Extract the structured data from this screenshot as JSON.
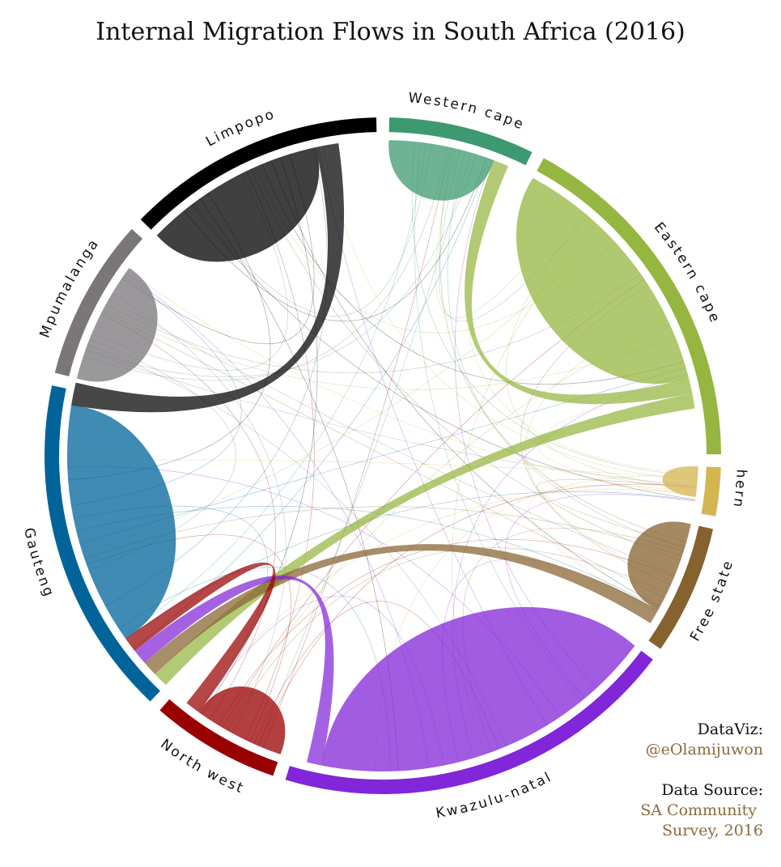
{
  "title": "Internal Migration Flows in South Africa (2016)",
  "credits": {
    "dataviz_label": "DataViz:",
    "dataviz_handle": "@eOlamijuwon",
    "source_label": "Data Source:",
    "source_line1": "SA Community",
    "source_line2": "Survey, 2016"
  },
  "chart_data": {
    "type": "chord",
    "title": "Internal Migration Flows in South Africa (2016)",
    "sectors": [
      {
        "name": "Western cape",
        "color": "#3d9970",
        "total": 9
      },
      {
        "name": "Eastern cape",
        "color": "#95b640",
        "total": 22
      },
      {
        "name": "Northern cape",
        "color": "#d4b651",
        "total": 3
      },
      {
        "name": "Free state",
        "color": "#86622e",
        "total": 8
      },
      {
        "name": "Kwazulu-natal",
        "color": "#8126d8",
        "total": 25
      },
      {
        "name": "North west",
        "color": "#990000",
        "total": 8
      },
      {
        "name": "Gauteng",
        "color": "#00649a",
        "total": 21
      },
      {
        "name": "Mpumalanga",
        "color": "#7a7679",
        "total": 10
      },
      {
        "name": "Limpopo",
        "color": "#000000",
        "total": 16
      }
    ],
    "flows": [
      {
        "from": "Western cape",
        "to": "Western cape",
        "value": 7
      },
      {
        "from": "Eastern cape",
        "to": "Eastern cape",
        "value": 17
      },
      {
        "from": "Eastern cape",
        "to": "Western cape",
        "value": 1
      },
      {
        "from": "Eastern cape",
        "to": "Gauteng",
        "value": 1
      },
      {
        "from": "Northern cape",
        "to": "Northern cape",
        "value": 2
      },
      {
        "from": "Free state",
        "to": "Free state",
        "value": 6
      },
      {
        "from": "Free state",
        "to": "Gauteng",
        "value": 1
      },
      {
        "from": "Kwazulu-natal",
        "to": "Kwazulu-natal",
        "value": 23
      },
      {
        "from": "Kwazulu-natal",
        "to": "Gauteng",
        "value": 1
      },
      {
        "from": "North west",
        "to": "North west",
        "value": 6
      },
      {
        "from": "North west",
        "to": "Gauteng",
        "value": 1
      },
      {
        "from": "Gauteng",
        "to": "Gauteng",
        "value": 16
      },
      {
        "from": "Mpumalanga",
        "to": "Mpumalanga",
        "value": 8
      },
      {
        "from": "Limpopo",
        "to": "Limpopo",
        "value": 12
      },
      {
        "from": "Limpopo",
        "to": "Gauteng",
        "value": 1.5
      }
    ]
  }
}
